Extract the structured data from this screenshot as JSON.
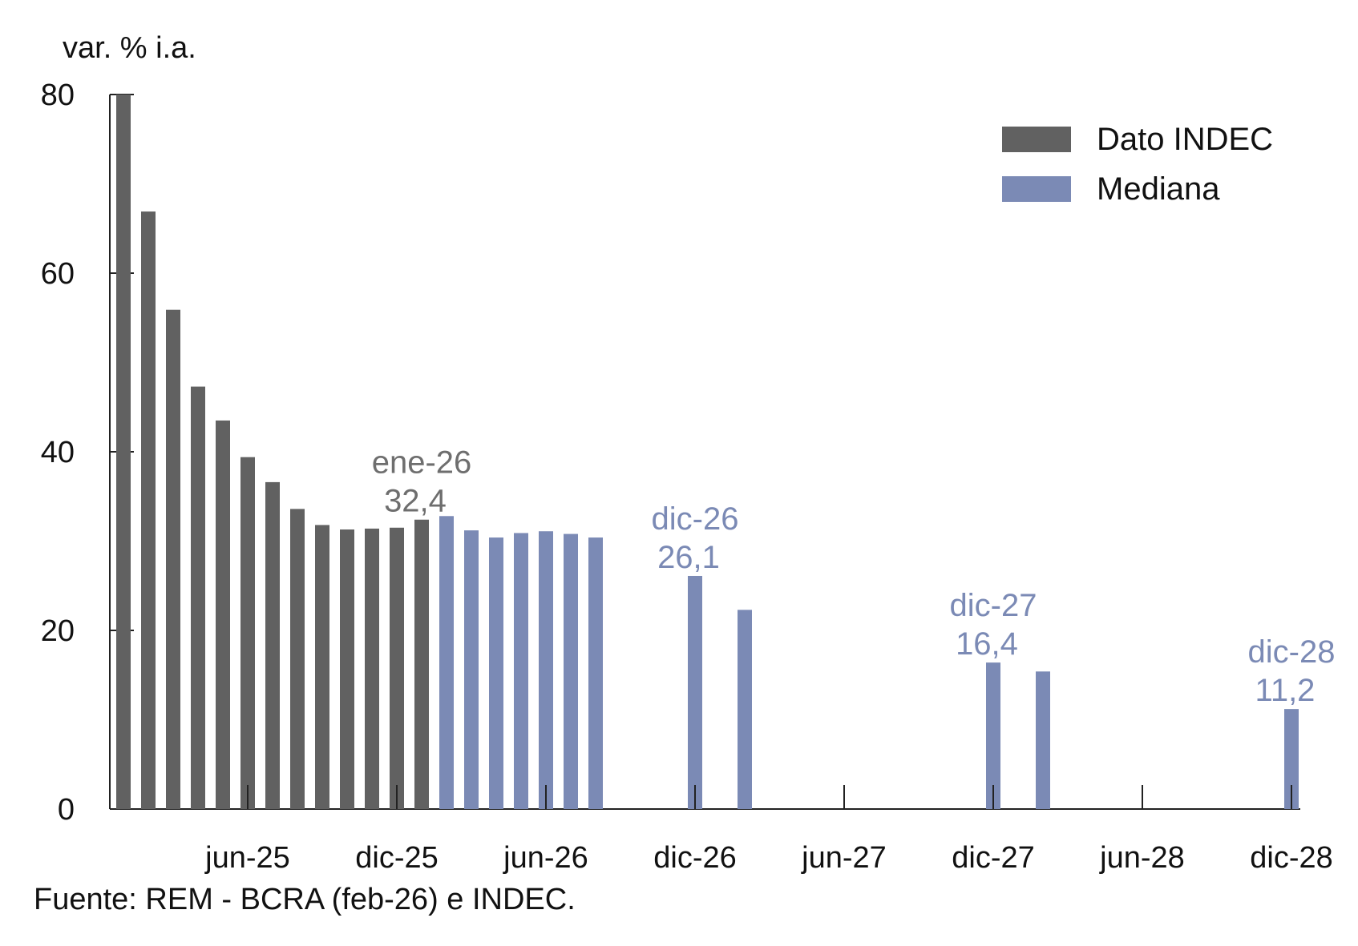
{
  "chart_data": {
    "type": "bar",
    "ylabel": "var. % i.a.",
    "ylim": [
      0,
      80
    ],
    "yticks": [
      "0",
      "20",
      "40",
      "60",
      "80"
    ],
    "x_tick_labels": [
      "jun-25",
      "dic-25",
      "jun-26",
      "dic-26",
      "jun-27",
      "dic-27",
      "jun-28",
      "dic-28"
    ],
    "colors": {
      "indec": "#616161",
      "mediana": "#7b8ab5"
    },
    "legend": {
      "position": "top-right",
      "entries": [
        "Dato INDEC",
        "Mediana"
      ]
    },
    "series": [
      {
        "name": "Dato INDEC",
        "points": [
          {
            "x": "ene-25",
            "y": 84.5
          },
          {
            "x": "feb-25",
            "y": 66.9
          },
          {
            "x": "mar-25",
            "y": 55.9
          },
          {
            "x": "abr-25",
            "y": 47.3
          },
          {
            "x": "may-25",
            "y": 43.5
          },
          {
            "x": "jun-25",
            "y": 39.4
          },
          {
            "x": "jul-25",
            "y": 36.6
          },
          {
            "x": "ago-25",
            "y": 33.6
          },
          {
            "x": "sep-25",
            "y": 31.8
          },
          {
            "x": "oct-25",
            "y": 31.3
          },
          {
            "x": "nov-25",
            "y": 31.4
          },
          {
            "x": "dic-25",
            "y": 31.5
          },
          {
            "x": "ene-26",
            "y": 32.4
          }
        ]
      },
      {
        "name": "Mediana",
        "points": [
          {
            "x": "feb-26",
            "y": 32.8
          },
          {
            "x": "mar-26",
            "y": 31.2
          },
          {
            "x": "abr-26",
            "y": 30.4
          },
          {
            "x": "may-26",
            "y": 30.9
          },
          {
            "x": "jun-26",
            "y": 31.1
          },
          {
            "x": "jul-26",
            "y": 30.8
          },
          {
            "x": "ago-26",
            "y": 30.4
          },
          {
            "x": "dic-26",
            "y": 26.1
          },
          {
            "x": "feb-27",
            "y": 22.3
          },
          {
            "x": "dic-27",
            "y": 16.4
          },
          {
            "x": "feb-28",
            "y": 15.4
          },
          {
            "x": "dic-28",
            "y": 11.2
          }
        ]
      }
    ],
    "annotations": [
      {
        "x": "ene-26",
        "line1": "ene-26",
        "line2": "32,4",
        "series": "indec"
      },
      {
        "x": "dic-26",
        "line1": "dic-26",
        "line2": "26,1",
        "series": "mediana"
      },
      {
        "x": "dic-27",
        "line1": "dic-27",
        "line2": "16,4",
        "series": "mediana"
      },
      {
        "x": "dic-28",
        "line1": "dic-28",
        "line2": "11,2",
        "series": "mediana"
      }
    ],
    "source": "Fuente: REM - BCRA (feb-26) e INDEC."
  }
}
